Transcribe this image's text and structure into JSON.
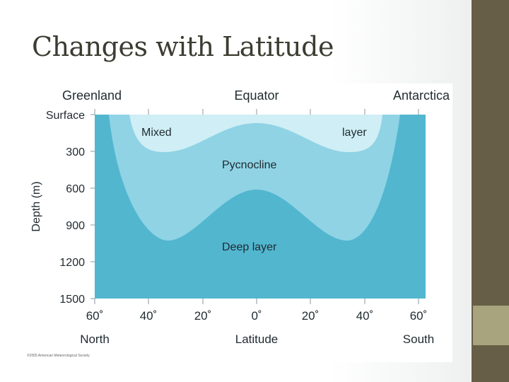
{
  "slide": {
    "title": "Changes with Latitude"
  },
  "diagram": {
    "top_labels": {
      "left": "Greenland",
      "center": "Equator",
      "right": "Antarctica"
    },
    "y_axis": {
      "title": "Depth (m)",
      "ticks": [
        "Surface",
        "300",
        "600",
        "900",
        "1200",
        "1500"
      ]
    },
    "x_axis": {
      "title": "Latitude",
      "ticks": [
        "60˚",
        "40˚",
        "20˚",
        "0˚",
        "20˚",
        "40˚",
        "60˚"
      ],
      "left_end": "North",
      "right_end": "South"
    },
    "layers": {
      "mixed_left": "Mixed",
      "mixed_right": "layer",
      "pycnocline": "Pycnocline",
      "deep": "Deep layer"
    },
    "colors": {
      "mixed": "#cfeef5",
      "pycnocline": "#8fd3e5",
      "deep": "#52b6cf"
    },
    "credit": "©2005 American Meteorological Society"
  }
}
